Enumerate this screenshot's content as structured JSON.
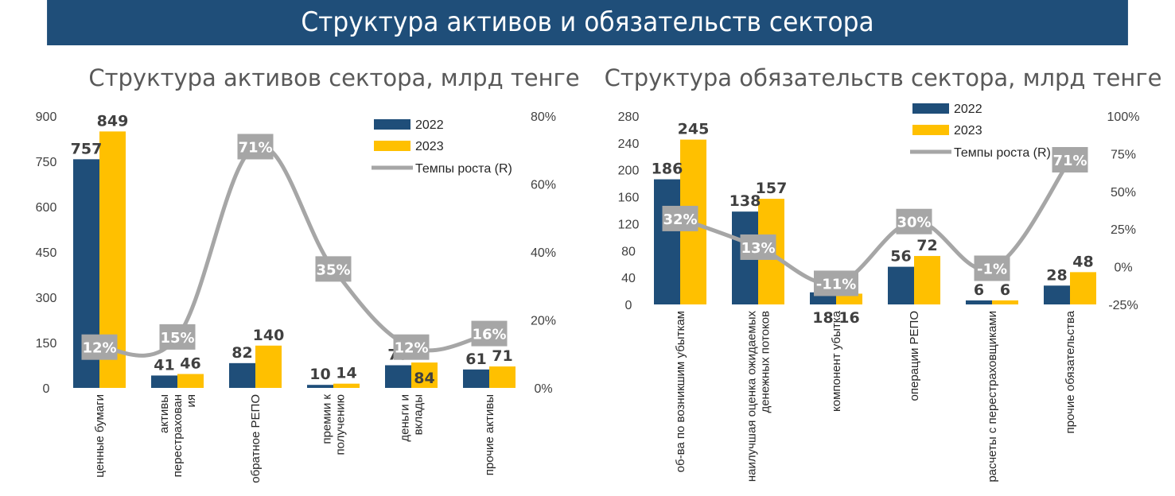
{
  "header": {
    "title": "Структура активов и обязательств сектора"
  },
  "colors": {
    "s2022": "#1f4e79",
    "s2023": "#ffc000",
    "rate": "#a6a6a6",
    "banner": "#1f4e79"
  },
  "chart_data": [
    {
      "type": "bar",
      "title": "Структура активов сектора, млрд тенге",
      "categories": [
        "ценные бумаги",
        "активы перестрахования",
        "обратное РЕПО",
        "премии к получению",
        "деньги и вклады",
        "прочие активы"
      ],
      "category_lines": [
        [
          "ценные бумаги"
        ],
        [
          "активы",
          "перестрахован",
          "ия"
        ],
        [
          "обратное РЕПО"
        ],
        [
          "премии к",
          "получению"
        ],
        [
          "деньги и",
          "вклады"
        ],
        [
          "прочие активы"
        ]
      ],
      "series": [
        {
          "name": "2022",
          "values": [
            757,
            41,
            82,
            10,
            75,
            61
          ]
        },
        {
          "name": "2023",
          "values": [
            849,
            46,
            140,
            14,
            84,
            71
          ]
        }
      ],
      "rate_series": {
        "name": "Темпы роста (R)",
        "values": [
          12,
          15,
          71,
          35,
          12,
          16
        ],
        "labels": [
          "12%",
          "15%",
          "71%",
          "35%",
          "12%",
          "16%"
        ]
      },
      "y_left": {
        "ylim": [
          0,
          900
        ],
        "ticks": [
          "0",
          "150",
          "300",
          "450",
          "600",
          "750",
          "900"
        ]
      },
      "y_right": {
        "ylim": [
          0,
          80
        ],
        "ticks": [
          "0%",
          "20%",
          "40%",
          "60%",
          "80%"
        ]
      },
      "legend": [
        "2022",
        "2023",
        "Темпы роста (R)"
      ],
      "legend_position": "top-right",
      "grid": false
    },
    {
      "type": "bar",
      "title": "Структура обязательств сектора, млрд тенге",
      "categories": [
        "об-ва по возникшим убыткам",
        "наилучшая оценка ожидаемых денежных потоков",
        "компонент убытка",
        "операции РЕПО",
        "расчеты с перестраховщиками",
        "прочие обязательства"
      ],
      "category_lines": [
        [
          "об-ва по возникшим убыткам"
        ],
        [
          "наилучшая оценка ожидаемых",
          "денежных потоков"
        ],
        [
          "компонент убытка"
        ],
        [
          "операции РЕПО"
        ],
        [
          "расчеты с перестраховщиками"
        ],
        [
          "прочие обязательства"
        ]
      ],
      "series": [
        {
          "name": "2022",
          "values": [
            186,
            138,
            18,
            56,
            6,
            28
          ]
        },
        {
          "name": "2023",
          "values": [
            245,
            157,
            16,
            72,
            6,
            48
          ]
        }
      ],
      "rate_series": {
        "name": "Темпы роста (R)",
        "values": [
          32,
          13,
          -11,
          30,
          -1,
          71
        ],
        "labels": [
          "32%",
          "13%",
          "-11%",
          "30%",
          "-1%",
          "71%"
        ]
      },
      "y_left": {
        "ylim": [
          0,
          280
        ],
        "ticks": [
          "0",
          "40",
          "80",
          "120",
          "160",
          "200",
          "240",
          "280"
        ]
      },
      "y_right": {
        "ylim": [
          -25,
          100
        ],
        "ticks": [
          "-25%",
          "0%",
          "25%",
          "50%",
          "75%",
          "100%"
        ]
      },
      "legend": [
        "2022",
        "2023",
        "Темпы роста (R)"
      ],
      "legend_position": "top-right",
      "grid": false
    }
  ]
}
